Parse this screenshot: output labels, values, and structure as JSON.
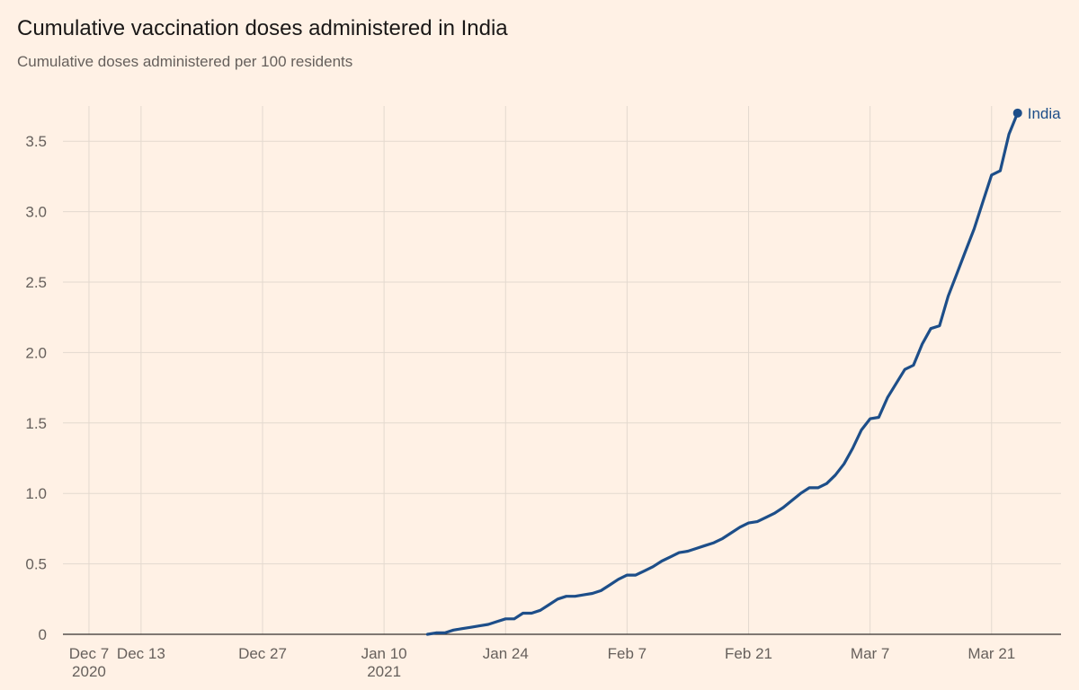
{
  "header": {
    "title": "Cumulative vaccination doses administered in India",
    "subtitle": "Cumulative doses administered per 100 residents"
  },
  "colors": {
    "background": "#fff1e5",
    "series": "#1d4e89"
  },
  "chart_data": {
    "type": "line",
    "title": "Cumulative vaccination doses administered in India",
    "subtitle": "Cumulative doses administered per 100 residents",
    "xlabel": "",
    "ylabel": "",
    "x_axis": {
      "start": "2020-12-04",
      "end": "2021-03-29",
      "ticks": [
        {
          "date": "2020-12-07",
          "label": "Dec 7",
          "sublabel": "2020"
        },
        {
          "date": "2020-12-13",
          "label": "Dec 13",
          "sublabel": ""
        },
        {
          "date": "2020-12-27",
          "label": "Dec 27",
          "sublabel": ""
        },
        {
          "date": "2021-01-10",
          "label": "Jan 10",
          "sublabel": "2021"
        },
        {
          "date": "2021-01-24",
          "label": "Jan 24",
          "sublabel": ""
        },
        {
          "date": "2021-02-07",
          "label": "Feb 7",
          "sublabel": ""
        },
        {
          "date": "2021-02-21",
          "label": "Feb 21",
          "sublabel": ""
        },
        {
          "date": "2021-03-07",
          "label": "Mar 7",
          "sublabel": ""
        },
        {
          "date": "2021-03-21",
          "label": "Mar 21",
          "sublabel": ""
        }
      ]
    },
    "y_axis": {
      "ylim": [
        0,
        3.75
      ],
      "ticks": [
        0,
        0.5,
        1.0,
        1.5,
        2.0,
        2.5,
        3.0,
        3.5
      ],
      "tick_labels": [
        "0",
        "0.5",
        "1.0",
        "1.5",
        "2.0",
        "2.5",
        "3.0",
        "3.5"
      ]
    },
    "grid": true,
    "series": [
      {
        "name": "India",
        "label": "India",
        "color": "#1d4e89",
        "x": [
          "2021-01-15",
          "2021-01-16",
          "2021-01-17",
          "2021-01-18",
          "2021-01-19",
          "2021-01-20",
          "2021-01-21",
          "2021-01-22",
          "2021-01-23",
          "2021-01-24",
          "2021-01-25",
          "2021-01-26",
          "2021-01-27",
          "2021-01-28",
          "2021-01-29",
          "2021-01-30",
          "2021-01-31",
          "2021-02-01",
          "2021-02-02",
          "2021-02-03",
          "2021-02-04",
          "2021-02-05",
          "2021-02-06",
          "2021-02-07",
          "2021-02-08",
          "2021-02-09",
          "2021-02-10",
          "2021-02-11",
          "2021-02-12",
          "2021-02-13",
          "2021-02-14",
          "2021-02-15",
          "2021-02-16",
          "2021-02-17",
          "2021-02-18",
          "2021-02-19",
          "2021-02-20",
          "2021-02-21",
          "2021-02-22",
          "2021-02-23",
          "2021-02-24",
          "2021-02-25",
          "2021-02-26",
          "2021-02-27",
          "2021-02-28",
          "2021-03-01",
          "2021-03-02",
          "2021-03-03",
          "2021-03-04",
          "2021-03-05",
          "2021-03-06",
          "2021-03-07",
          "2021-03-08",
          "2021-03-09",
          "2021-03-10",
          "2021-03-11",
          "2021-03-12",
          "2021-03-13",
          "2021-03-14",
          "2021-03-15",
          "2021-03-16",
          "2021-03-17",
          "2021-03-18",
          "2021-03-19",
          "2021-03-20",
          "2021-03-21",
          "2021-03-22",
          "2021-03-23"
        ],
        "values": [
          0.0,
          0.01,
          0.01,
          0.03,
          0.04,
          0.05,
          0.06,
          0.07,
          0.09,
          0.11,
          0.11,
          0.15,
          0.15,
          0.17,
          0.21,
          0.25,
          0.27,
          0.27,
          0.28,
          0.29,
          0.31,
          0.35,
          0.39,
          0.42,
          0.42,
          0.45,
          0.48,
          0.52,
          0.55,
          0.58,
          0.59,
          0.61,
          0.63,
          0.65,
          0.68,
          0.72,
          0.76,
          0.79,
          0.8,
          0.83,
          0.86,
          0.9,
          0.95,
          1.0,
          1.04,
          1.04,
          1.07,
          1.13,
          1.21,
          1.32,
          1.45,
          1.53,
          1.54,
          1.68,
          1.78,
          1.88,
          1.91,
          2.06,
          2.17,
          2.19,
          2.4,
          2.56,
          2.72,
          2.88,
          3.07,
          3.26,
          3.29,
          3.55
        ]
      }
    ],
    "end_point": {
      "date": "2021-03-24",
      "value": 3.7,
      "label": "India"
    }
  }
}
